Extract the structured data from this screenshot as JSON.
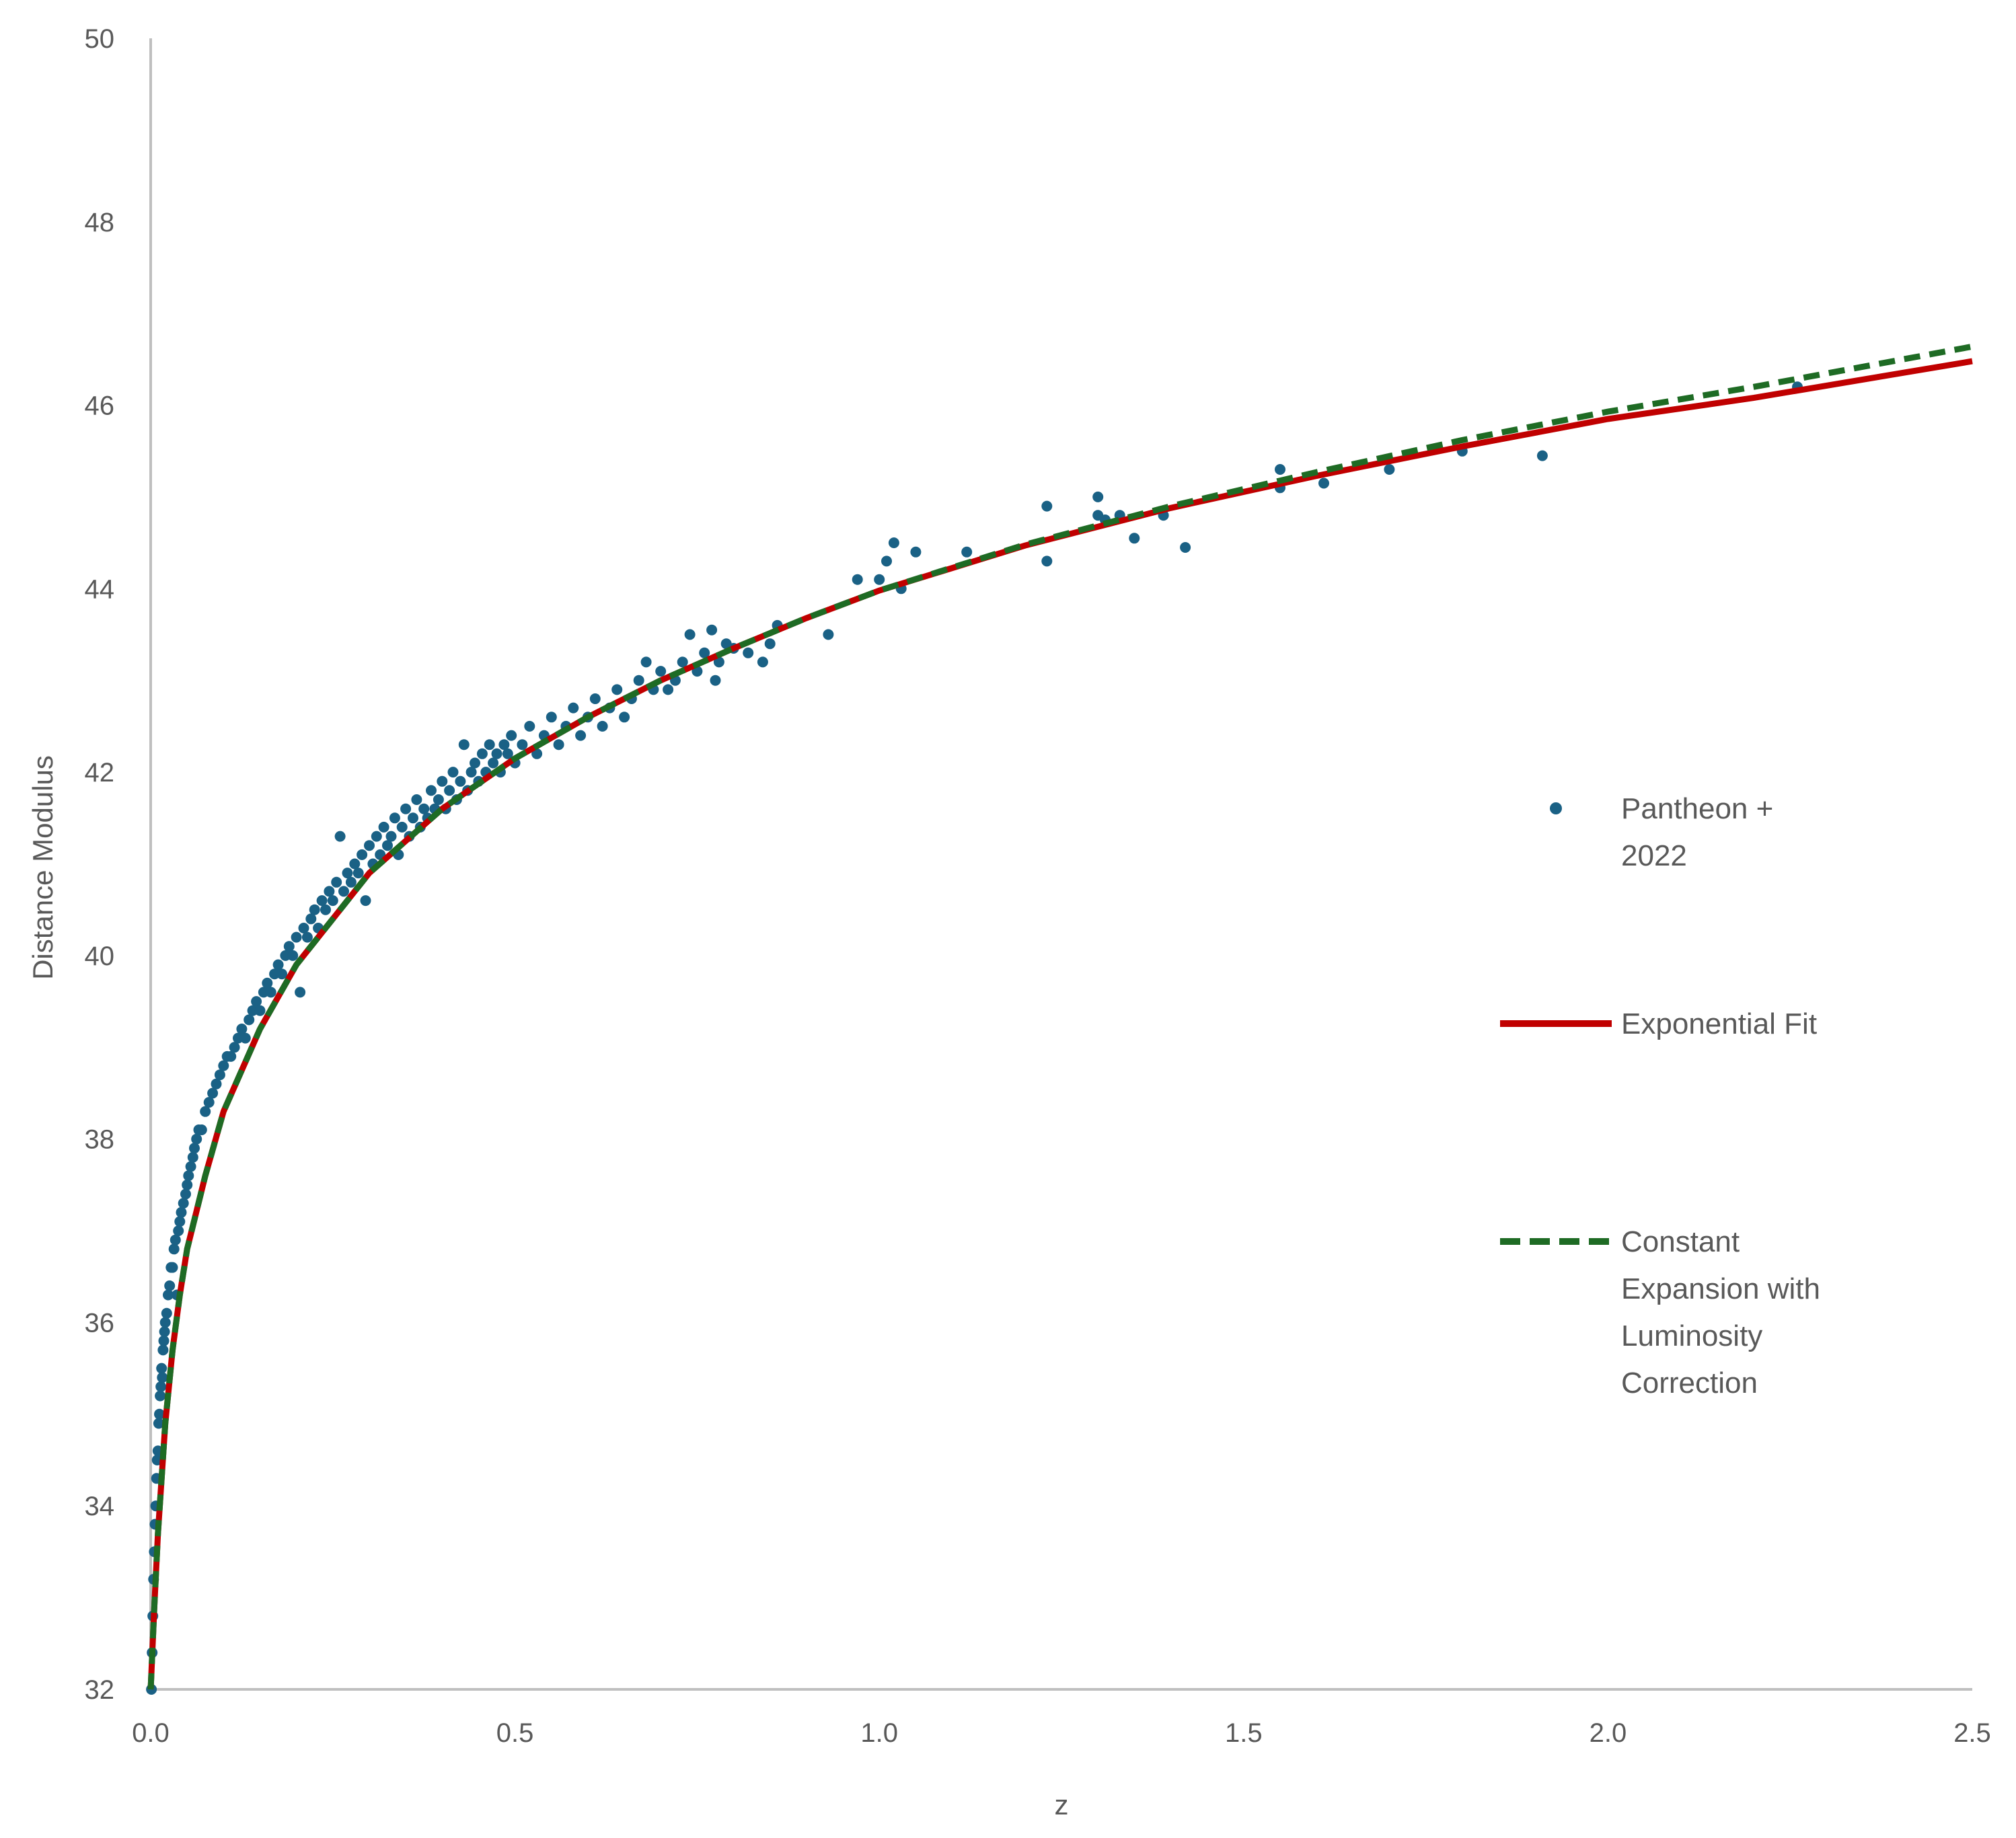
{
  "chart_data": {
    "type": "scatter",
    "title": "",
    "xlabel": "z",
    "ylabel": "Distance Modulus",
    "xlim": [
      0.0,
      2.5
    ],
    "ylim": [
      32,
      50
    ],
    "x_ticks": [
      "0.0",
      "0.5",
      "1.0",
      "1.5",
      "2.0",
      "2.5"
    ],
    "y_ticks": [
      "32",
      "34",
      "36",
      "38",
      "40",
      "42",
      "44",
      "46",
      "48",
      "50"
    ],
    "grid": false,
    "legend_position": "right-inside",
    "series": [
      {
        "name": "Pantheon + 2022",
        "kind": "scatter",
        "color": "#1A6185",
        "points": [
          [
            0.001,
            32.0
          ],
          [
            0.002,
            32.4
          ],
          [
            0.003,
            32.8
          ],
          [
            0.004,
            33.2
          ],
          [
            0.005,
            33.5
          ],
          [
            0.006,
            33.8
          ],
          [
            0.007,
            34.0
          ],
          [
            0.008,
            34.3
          ],
          [
            0.009,
            34.5
          ],
          [
            0.01,
            34.6
          ],
          [
            0.011,
            34.9
          ],
          [
            0.012,
            35.0
          ],
          [
            0.013,
            35.2
          ],
          [
            0.014,
            35.3
          ],
          [
            0.015,
            35.5
          ],
          [
            0.016,
            35.4
          ],
          [
            0.017,
            35.7
          ],
          [
            0.018,
            35.8
          ],
          [
            0.019,
            35.9
          ],
          [
            0.02,
            36.0
          ],
          [
            0.022,
            36.1
          ],
          [
            0.024,
            36.3
          ],
          [
            0.026,
            36.4
          ],
          [
            0.028,
            36.6
          ],
          [
            0.03,
            36.6
          ],
          [
            0.032,
            36.8
          ],
          [
            0.034,
            36.9
          ],
          [
            0.036,
            36.3
          ],
          [
            0.038,
            37.0
          ],
          [
            0.04,
            37.1
          ],
          [
            0.042,
            37.2
          ],
          [
            0.045,
            37.3
          ],
          [
            0.048,
            37.4
          ],
          [
            0.05,
            37.5
          ],
          [
            0.052,
            37.6
          ],
          [
            0.055,
            37.7
          ],
          [
            0.058,
            37.8
          ],
          [
            0.06,
            37.9
          ],
          [
            0.063,
            38.0
          ],
          [
            0.066,
            38.1
          ],
          [
            0.07,
            38.1
          ],
          [
            0.075,
            38.3
          ],
          [
            0.08,
            38.4
          ],
          [
            0.085,
            38.5
          ],
          [
            0.09,
            38.6
          ],
          [
            0.095,
            38.7
          ],
          [
            0.1,
            38.8
          ],
          [
            0.105,
            38.9
          ],
          [
            0.11,
            38.9
          ],
          [
            0.115,
            39.0
          ],
          [
            0.12,
            39.1
          ],
          [
            0.125,
            39.2
          ],
          [
            0.13,
            39.1
          ],
          [
            0.135,
            39.3
          ],
          [
            0.14,
            39.4
          ],
          [
            0.145,
            39.5
          ],
          [
            0.15,
            39.4
          ],
          [
            0.155,
            39.6
          ],
          [
            0.16,
            39.7
          ],
          [
            0.165,
            39.6
          ],
          [
            0.17,
            39.8
          ],
          [
            0.175,
            39.9
          ],
          [
            0.18,
            39.8
          ],
          [
            0.185,
            40.0
          ],
          [
            0.19,
            40.1
          ],
          [
            0.195,
            40.0
          ],
          [
            0.2,
            40.2
          ],
          [
            0.205,
            39.6
          ],
          [
            0.21,
            40.3
          ],
          [
            0.215,
            40.2
          ],
          [
            0.22,
            40.4
          ],
          [
            0.225,
            40.5
          ],
          [
            0.23,
            40.3
          ],
          [
            0.235,
            40.6
          ],
          [
            0.24,
            40.5
          ],
          [
            0.245,
            40.7
          ],
          [
            0.25,
            40.6
          ],
          [
            0.255,
            40.8
          ],
          [
            0.26,
            41.3
          ],
          [
            0.265,
            40.7
          ],
          [
            0.27,
            40.9
          ],
          [
            0.275,
            40.8
          ],
          [
            0.28,
            41.0
          ],
          [
            0.285,
            40.9
          ],
          [
            0.29,
            41.1
          ],
          [
            0.295,
            40.6
          ],
          [
            0.3,
            41.2
          ],
          [
            0.305,
            41.0
          ],
          [
            0.31,
            41.3
          ],
          [
            0.315,
            41.1
          ],
          [
            0.32,
            41.4
          ],
          [
            0.325,
            41.2
          ],
          [
            0.33,
            41.3
          ],
          [
            0.335,
            41.5
          ],
          [
            0.34,
            41.1
          ],
          [
            0.345,
            41.4
          ],
          [
            0.35,
            41.6
          ],
          [
            0.355,
            41.3
          ],
          [
            0.36,
            41.5
          ],
          [
            0.365,
            41.7
          ],
          [
            0.37,
            41.4
          ],
          [
            0.375,
            41.6
          ],
          [
            0.38,
            41.5
          ],
          [
            0.385,
            41.8
          ],
          [
            0.39,
            41.6
          ],
          [
            0.395,
            41.7
          ],
          [
            0.4,
            41.9
          ],
          [
            0.405,
            41.6
          ],
          [
            0.41,
            41.8
          ],
          [
            0.415,
            42.0
          ],
          [
            0.42,
            41.7
          ],
          [
            0.425,
            41.9
          ],
          [
            0.43,
            42.3
          ],
          [
            0.435,
            41.8
          ],
          [
            0.44,
            42.0
          ],
          [
            0.445,
            42.1
          ],
          [
            0.45,
            41.9
          ],
          [
            0.455,
            42.2
          ],
          [
            0.46,
            42.0
          ],
          [
            0.465,
            42.3
          ],
          [
            0.47,
            42.1
          ],
          [
            0.475,
            42.2
          ],
          [
            0.48,
            42.0
          ],
          [
            0.485,
            42.3
          ],
          [
            0.49,
            42.2
          ],
          [
            0.495,
            42.4
          ],
          [
            0.5,
            42.1
          ],
          [
            0.51,
            42.3
          ],
          [
            0.52,
            42.5
          ],
          [
            0.53,
            42.2
          ],
          [
            0.54,
            42.4
          ],
          [
            0.55,
            42.6
          ],
          [
            0.56,
            42.3
          ],
          [
            0.57,
            42.5
          ],
          [
            0.58,
            42.7
          ],
          [
            0.59,
            42.4
          ],
          [
            0.6,
            42.6
          ],
          [
            0.61,
            42.8
          ],
          [
            0.62,
            42.5
          ],
          [
            0.63,
            42.7
          ],
          [
            0.64,
            42.9
          ],
          [
            0.65,
            42.6
          ],
          [
            0.66,
            42.8
          ],
          [
            0.67,
            43.0
          ],
          [
            0.68,
            43.2
          ],
          [
            0.69,
            42.9
          ],
          [
            0.7,
            43.1
          ],
          [
            0.71,
            42.9
          ],
          [
            0.72,
            43.0
          ],
          [
            0.73,
            43.2
          ],
          [
            0.74,
            43.5
          ],
          [
            0.75,
            43.1
          ],
          [
            0.76,
            43.3
          ],
          [
            0.77,
            43.55
          ],
          [
            0.775,
            43.0
          ],
          [
            0.78,
            43.2
          ],
          [
            0.79,
            43.4
          ],
          [
            0.8,
            43.35
          ],
          [
            0.82,
            43.3
          ],
          [
            0.84,
            43.2
          ],
          [
            0.85,
            43.4
          ],
          [
            0.86,
            43.6
          ],
          [
            0.93,
            43.5
          ],
          [
            0.97,
            44.1
          ],
          [
            1.0,
            44.1
          ],
          [
            1.01,
            44.3
          ],
          [
            1.02,
            44.5
          ],
          [
            1.03,
            44.0
          ],
          [
            1.05,
            44.4
          ],
          [
            1.12,
            44.4
          ],
          [
            1.23,
            44.9
          ],
          [
            1.23,
            44.3
          ],
          [
            1.3,
            45.0
          ],
          [
            1.3,
            44.8
          ],
          [
            1.31,
            44.75
          ],
          [
            1.33,
            44.8
          ],
          [
            1.35,
            44.55
          ],
          [
            1.39,
            44.8
          ],
          [
            1.42,
            44.45
          ],
          [
            1.55,
            45.1
          ],
          [
            1.55,
            45.3
          ],
          [
            1.61,
            45.15
          ],
          [
            1.7,
            45.3
          ],
          [
            1.8,
            45.5
          ],
          [
            1.91,
            45.45
          ],
          [
            2.26,
            46.2
          ]
        ]
      },
      {
        "name": "Exponential Fit",
        "kind": "line",
        "color": "#C00000",
        "dash": "solid",
        "points": [
          [
            0.0,
            32.0
          ],
          [
            0.005,
            32.9
          ],
          [
            0.01,
            33.7
          ],
          [
            0.02,
            34.9
          ],
          [
            0.03,
            35.7
          ],
          [
            0.04,
            36.3
          ],
          [
            0.05,
            36.8
          ],
          [
            0.075,
            37.6
          ],
          [
            0.1,
            38.3
          ],
          [
            0.15,
            39.2
          ],
          [
            0.2,
            39.9
          ],
          [
            0.3,
            40.9
          ],
          [
            0.4,
            41.6
          ],
          [
            0.5,
            42.15
          ],
          [
            0.6,
            42.6
          ],
          [
            0.7,
            43.0
          ],
          [
            0.8,
            43.35
          ],
          [
            0.9,
            43.68
          ],
          [
            1.0,
            43.98
          ],
          [
            1.2,
            44.47
          ],
          [
            1.4,
            44.88
          ],
          [
            1.6,
            45.23
          ],
          [
            1.8,
            45.55
          ],
          [
            2.0,
            45.85
          ],
          [
            2.2,
            46.08
          ],
          [
            2.5,
            46.48
          ]
        ]
      },
      {
        "name": "Constant Expansion with Luminosity Correction",
        "kind": "line",
        "color": "#1E6B24",
        "dash": "dashed",
        "points": [
          [
            0.0,
            32.0
          ],
          [
            0.005,
            32.9
          ],
          [
            0.01,
            33.7
          ],
          [
            0.02,
            34.9
          ],
          [
            0.03,
            35.7
          ],
          [
            0.04,
            36.3
          ],
          [
            0.05,
            36.8
          ],
          [
            0.075,
            37.6
          ],
          [
            0.1,
            38.3
          ],
          [
            0.15,
            39.2
          ],
          [
            0.2,
            39.9
          ],
          [
            0.3,
            40.9
          ],
          [
            0.4,
            41.6
          ],
          [
            0.5,
            42.15
          ],
          [
            0.6,
            42.6
          ],
          [
            0.7,
            43.0
          ],
          [
            0.8,
            43.35
          ],
          [
            0.9,
            43.68
          ],
          [
            1.0,
            43.98
          ],
          [
            1.2,
            44.48
          ],
          [
            1.4,
            44.9
          ],
          [
            1.6,
            45.27
          ],
          [
            1.8,
            45.62
          ],
          [
            2.0,
            45.93
          ],
          [
            2.2,
            46.2
          ],
          [
            2.5,
            46.64
          ]
        ]
      }
    ]
  },
  "axes": {
    "x_title": "z",
    "y_title": "Distance Modulus",
    "axis_color": "#BFBFBF",
    "label_color": "#595959"
  },
  "legend": {
    "items": [
      {
        "label_lines": [
          "Pantheon +",
          "2022"
        ],
        "marker": "dot",
        "color": "#1A6185"
      },
      {
        "label_lines": [
          "Exponential Fit"
        ],
        "marker": "line-solid",
        "color": "#C00000"
      },
      {
        "label_lines": [
          "Constant",
          "Expansion with",
          "Luminosity",
          "Correction"
        ],
        "marker": "line-dashed",
        "color": "#1E6B24"
      }
    ]
  }
}
